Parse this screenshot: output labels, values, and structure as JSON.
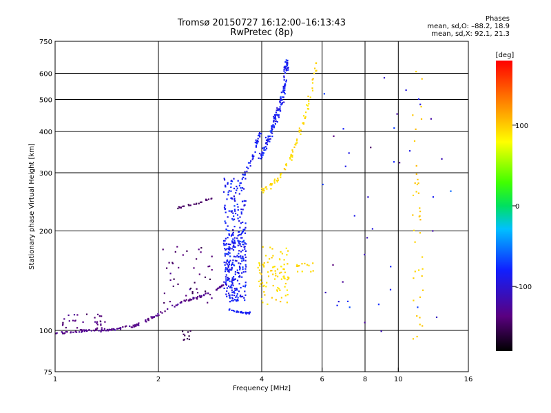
{
  "header": {
    "title_line1": "Tromsø 20150727 16:12:00–16:13:43",
    "title_line2": "RwPretec (8p)",
    "stats_title": "Phases",
    "stats_o": "mean, sd,O: –88.2, 18.9",
    "stats_x": "mean, sd,X:  92.1, 21.3"
  },
  "colorbar": {
    "unit_label": "[deg]",
    "min": -180,
    "max": 180,
    "ticks": [
      {
        "value": 100,
        "label": "100"
      },
      {
        "value": 0,
        "label": "0"
      },
      {
        "value": -100,
        "label": "–100"
      }
    ]
  },
  "chart_data": {
    "type": "scatter",
    "title": "Tromsø 20150727 16:12:00–16:13:43",
    "subtitle": "RwPretec (8p)",
    "xlabel": "Frequency [MHz]",
    "ylabel": "Stationary phase Virtual Height [km]",
    "x_scale": "log",
    "y_scale": "log",
    "xlim": [
      1,
      16
    ],
    "ylim": [
      75,
      750
    ],
    "grid": true,
    "xticks": [
      {
        "value": 1,
        "label": "1"
      },
      {
        "value": 2,
        "label": "2"
      },
      {
        "value": 4,
        "label": "4"
      },
      {
        "value": 6,
        "label": "6"
      },
      {
        "value": 8,
        "label": "8"
      },
      {
        "value": 10,
        "label": "10"
      },
      {
        "value": 16,
        "label": "16"
      }
    ],
    "yticks": [
      {
        "value": 75,
        "label": "75"
      },
      {
        "value": 100,
        "label": "100"
      },
      {
        "value": 200,
        "label": "200"
      },
      {
        "value": 300,
        "label": "300"
      },
      {
        "value": 400,
        "label": "400"
      },
      {
        "value": 500,
        "label": "500"
      },
      {
        "value": 600,
        "label": "600"
      },
      {
        "value": 750,
        "label": "750"
      }
    ],
    "point_color_by": "phase",
    "clusters": [
      {
        "kind": "trace",
        "points": [
          [
            1,
            98
          ],
          [
            1.1,
            99
          ],
          [
            1.2,
            100
          ],
          [
            1.3,
            100
          ],
          [
            1.4,
            100
          ],
          [
            1.5,
            101
          ],
          [
            1.6,
            102
          ],
          [
            1.7,
            103
          ],
          [
            1.8,
            106
          ],
          [
            1.9,
            109
          ],
          [
            2,
            112
          ],
          [
            2.2,
            118
          ],
          [
            2.4,
            123
          ],
          [
            2.6,
            126
          ],
          [
            2.8,
            130
          ],
          [
            3.0,
            134
          ],
          [
            3.1,
            138
          ]
        ],
        "n": 160,
        "spread": 0.006,
        "phase": -130,
        "phase_sd": 12
      },
      {
        "kind": "box",
        "x": [
          1.05,
          1.4
        ],
        "y": [
          101,
          112
        ],
        "n": 30,
        "phase": -135,
        "phase_sd": 12
      },
      {
        "kind": "box",
        "x": [
          2.0,
          2.9
        ],
        "y": [
          118,
          180
        ],
        "n": 45,
        "phase": -140,
        "phase_sd": 15
      },
      {
        "kind": "box",
        "x": [
          2.35,
          2.5
        ],
        "y": [
          92,
          100
        ],
        "n": 10,
        "phase": -150,
        "phase_sd": 10
      },
      {
        "kind": "trace",
        "points": [
          [
            2.2,
            232
          ],
          [
            2.35,
            237
          ],
          [
            2.5,
            240
          ],
          [
            2.7,
            246
          ],
          [
            2.9,
            252
          ]
        ],
        "n": 22,
        "spread": 0.005,
        "phase": -145,
        "phase_sd": 8
      },
      {
        "kind": "box",
        "x": [
          3.1,
          3.6
        ],
        "y": [
          122,
          200
        ],
        "n": 260,
        "phase": -85,
        "phase_sd": 18
      },
      {
        "kind": "box",
        "x": [
          3.1,
          3.6
        ],
        "y": [
          200,
          290
        ],
        "n": 90,
        "phase": -85,
        "phase_sd": 18
      },
      {
        "kind": "trace",
        "points": [
          [
            3.2,
            116
          ],
          [
            3.4,
            114
          ],
          [
            3.6,
            113
          ],
          [
            3.7,
            113
          ]
        ],
        "n": 30,
        "spread": 0.004,
        "phase": -85,
        "phase_sd": 10
      },
      {
        "kind": "trace",
        "points": [
          [
            3.3,
            260
          ],
          [
            3.5,
            285
          ],
          [
            3.7,
            320
          ],
          [
            3.85,
            360
          ],
          [
            3.95,
            400
          ]
        ],
        "n": 45,
        "spread": 0.01,
        "phase": -85,
        "phase_sd": 15
      },
      {
        "kind": "trace",
        "points": [
          [
            3.95,
            330
          ],
          [
            4.1,
            360
          ],
          [
            4.3,
            410
          ],
          [
            4.5,
            470
          ],
          [
            4.65,
            540
          ],
          [
            4.7,
            620
          ],
          [
            4.75,
            650
          ]
        ],
        "n": 150,
        "spread": 0.015,
        "phase": -85,
        "phase_sd": 15
      },
      {
        "kind": "box",
        "x": [
          3.9,
          4.8
        ],
        "y": [
          120,
          180
        ],
        "n": 90,
        "phase": 95,
        "phase_sd": 10
      },
      {
        "kind": "trace",
        "points": [
          [
            4.0,
            265
          ],
          [
            4.3,
            275
          ],
          [
            4.6,
            300
          ],
          [
            4.9,
            340
          ],
          [
            5.2,
            400
          ],
          [
            5.5,
            500
          ],
          [
            5.8,
            650
          ]
        ],
        "n": 85,
        "spread": 0.012,
        "phase": 95,
        "phase_sd": 8
      },
      {
        "kind": "box",
        "x": [
          5.0,
          5.7
        ],
        "y": [
          150,
          160
        ],
        "n": 14,
        "phase": 95,
        "phase_sd": 8
      },
      {
        "kind": "box",
        "x": [
          11.0,
          11.8
        ],
        "y": [
          90,
          620
        ],
        "n": 40,
        "phase": 100,
        "phase_sd": 8
      },
      {
        "kind": "box",
        "x": [
          6.0,
          15.0
        ],
        "y": [
          80,
          600
        ],
        "n": 40,
        "phase": -100,
        "phase_sd": 40
      }
    ]
  }
}
